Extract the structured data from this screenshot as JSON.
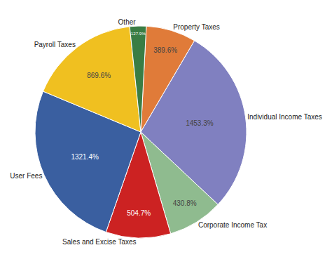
{
  "chart_data": {
    "type": "pie",
    "categories": [
      "Property Taxes",
      "Individual Income Taxes",
      "Corporate Income Tax",
      "Sales and Excise Taxes",
      "User Fees",
      "Payroll Taxes",
      "Other"
    ],
    "values": [
      389.6,
      1453.3,
      430.8,
      504.7,
      1321.4,
      869.6,
      127.9
    ],
    "value_labels": [
      "389.6%",
      "1453.3%",
      "430.8%",
      "504.7%",
      "1321.4%",
      "869.6%",
      "127.9%"
    ],
    "colors": [
      "#e07b39",
      "#8080c0",
      "#8fbb8f",
      "#cc2222",
      "#3a5fa0",
      "#f0c020",
      "#3a7d44"
    ],
    "data_labels": true
  }
}
